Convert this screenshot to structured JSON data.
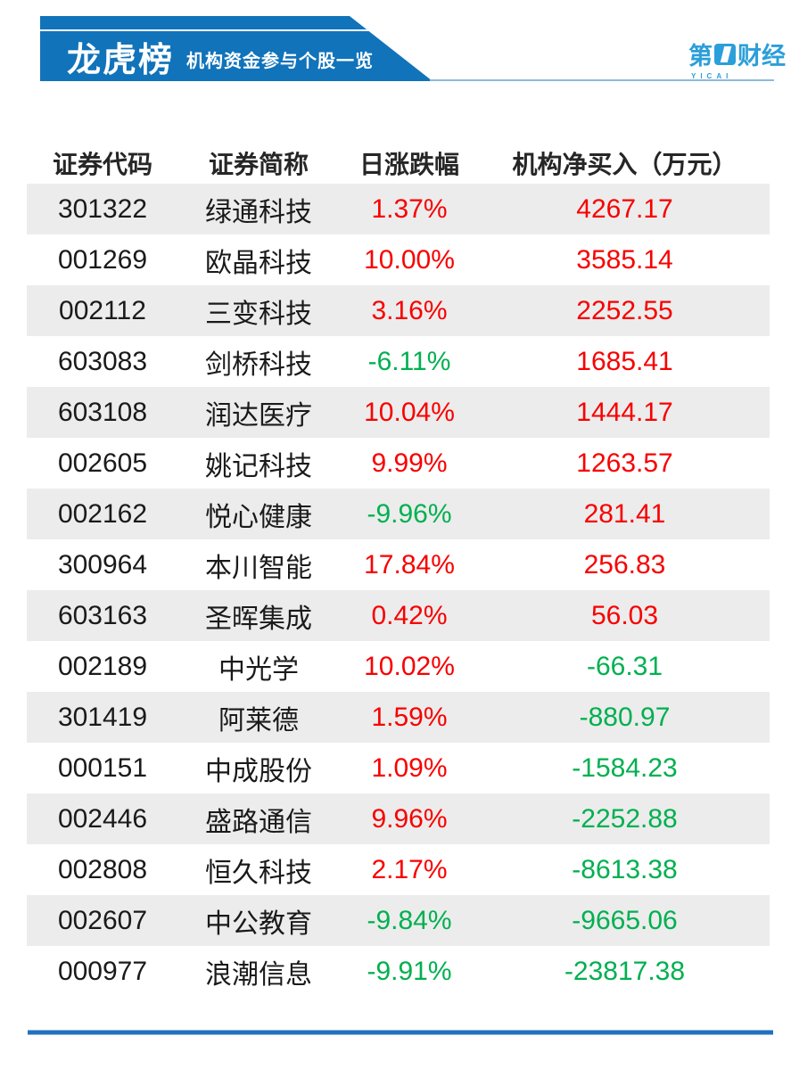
{
  "banner": {
    "title": "龙虎榜",
    "subtitle": "机构资金参与个股一览"
  },
  "logo": {
    "prefix": "第",
    "suffix": "财经",
    "sub": "YICAI"
  },
  "colors": {
    "banner_blue": "#1173ba",
    "logo_blue": "#2b9fd9",
    "light_line_blue": "#8db9dc",
    "bottom_line_blue": "#1e73be",
    "row_gray": "#ececec",
    "red": "#f80000",
    "green": "#00b050"
  },
  "table": {
    "columns": [
      "证券代码",
      "证券简称",
      "日涨跌幅",
      "机构净买入（万元）"
    ],
    "rows": [
      {
        "code": "301322",
        "name": "绿通科技",
        "change": "1.37%",
        "change_color": "red",
        "net": "4267.17",
        "net_color": "red"
      },
      {
        "code": "001269",
        "name": "欧晶科技",
        "change": "10.00%",
        "change_color": "red",
        "net": "3585.14",
        "net_color": "red"
      },
      {
        "code": "002112",
        "name": "三变科技",
        "change": "3.16%",
        "change_color": "red",
        "net": "2252.55",
        "net_color": "red"
      },
      {
        "code": "603083",
        "name": "剑桥科技",
        "change": "-6.11%",
        "change_color": "green",
        "net": "1685.41",
        "net_color": "red"
      },
      {
        "code": "603108",
        "name": "润达医疗",
        "change": "10.04%",
        "change_color": "red",
        "net": "1444.17",
        "net_color": "red"
      },
      {
        "code": "002605",
        "name": "姚记科技",
        "change": "9.99%",
        "change_color": "red",
        "net": "1263.57",
        "net_color": "red"
      },
      {
        "code": "002162",
        "name": "悦心健康",
        "change": "-9.96%",
        "change_color": "green",
        "net": "281.41",
        "net_color": "red"
      },
      {
        "code": "300964",
        "name": "本川智能",
        "change": "17.84%",
        "change_color": "red",
        "net": "256.83",
        "net_color": "red"
      },
      {
        "code": "603163",
        "name": "圣晖集成",
        "change": "0.42%",
        "change_color": "red",
        "net": "56.03",
        "net_color": "red"
      },
      {
        "code": "002189",
        "name": "中光学",
        "change": "10.02%",
        "change_color": "red",
        "net": "-66.31",
        "net_color": "green"
      },
      {
        "code": "301419",
        "name": "阿莱德",
        "change": "1.59%",
        "change_color": "red",
        "net": "-880.97",
        "net_color": "green"
      },
      {
        "code": "000151",
        "name": "中成股份",
        "change": "1.09%",
        "change_color": "red",
        "net": "-1584.23",
        "net_color": "green"
      },
      {
        "code": "002446",
        "name": "盛路通信",
        "change": "9.96%",
        "change_color": "red",
        "net": "-2252.88",
        "net_color": "green"
      },
      {
        "code": "002808",
        "name": "恒久科技",
        "change": "2.17%",
        "change_color": "red",
        "net": "-8613.38",
        "net_color": "green"
      },
      {
        "code": "002607",
        "name": "中公教育",
        "change": "-9.84%",
        "change_color": "green",
        "net": "-9665.06",
        "net_color": "green"
      },
      {
        "code": "000977",
        "name": "浪潮信息",
        "change": "-9.91%",
        "change_color": "green",
        "net": "-23817.38",
        "net_color": "green"
      }
    ]
  },
  "chart_data": {
    "type": "table",
    "title": "龙虎榜 机构资金参与个股一览",
    "columns": [
      "证券代码",
      "证券简称",
      "日涨跌幅",
      "机构净买入（万元）"
    ],
    "rows": [
      [
        "301322",
        "绿通科技",
        "1.37%",
        "4267.17"
      ],
      [
        "001269",
        "欧晶科技",
        "10.00%",
        "3585.14"
      ],
      [
        "002112",
        "三变科技",
        "3.16%",
        "2252.55"
      ],
      [
        "603083",
        "剑桥科技",
        "-6.11%",
        "1685.41"
      ],
      [
        "603108",
        "润达医疗",
        "10.04%",
        "1444.17"
      ],
      [
        "002605",
        "姚记科技",
        "9.99%",
        "1263.57"
      ],
      [
        "002162",
        "悦心健康",
        "-9.96%",
        "281.41"
      ],
      [
        "300964",
        "本川智能",
        "17.84%",
        "256.83"
      ],
      [
        "603163",
        "圣晖集成",
        "0.42%",
        "56.03"
      ],
      [
        "002189",
        "中光学",
        "10.02%",
        "-66.31"
      ],
      [
        "301419",
        "阿莱德",
        "1.59%",
        "-880.97"
      ],
      [
        "000151",
        "中成股份",
        "1.09%",
        "-1584.23"
      ],
      [
        "002446",
        "盛路通信",
        "9.96%",
        "-2252.88"
      ],
      [
        "002808",
        "恒久科技",
        "2.17%",
        "-8613.38"
      ],
      [
        "002607",
        "中公教育",
        "-9.84%",
        "-9665.06"
      ],
      [
        "000977",
        "浪潮信息",
        "-9.91%",
        "-23817.38"
      ]
    ],
    "notes": "上涨/正值以红色显示，下跌/负值以绿色显示"
  }
}
